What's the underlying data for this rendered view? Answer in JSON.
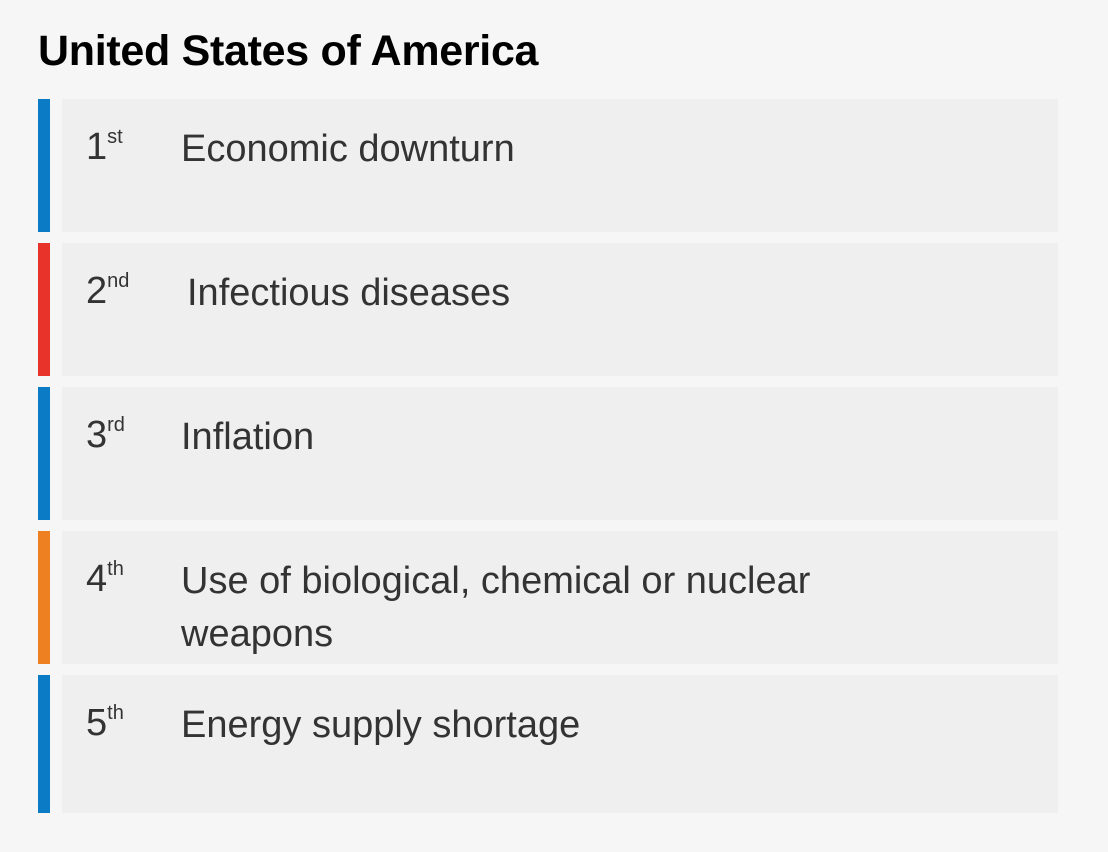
{
  "title": "United States of America",
  "risks": [
    {
      "rank": "1",
      "suffix": "st",
      "label": "Economic downturn",
      "color": "#0a7bc4"
    },
    {
      "rank": "2",
      "suffix": "nd",
      "label": "Infectious diseases",
      "color": "#e8332a"
    },
    {
      "rank": "3",
      "suffix": "rd",
      "label": "Inflation",
      "color": "#0a7bc4"
    },
    {
      "rank": "4",
      "suffix": "th",
      "label": "Use of biological, chemical or nuclear weapons",
      "color": "#ee8022"
    },
    {
      "rank": "5",
      "suffix": "th",
      "label": "Energy supply shortage",
      "color": "#0a7bc4"
    }
  ]
}
